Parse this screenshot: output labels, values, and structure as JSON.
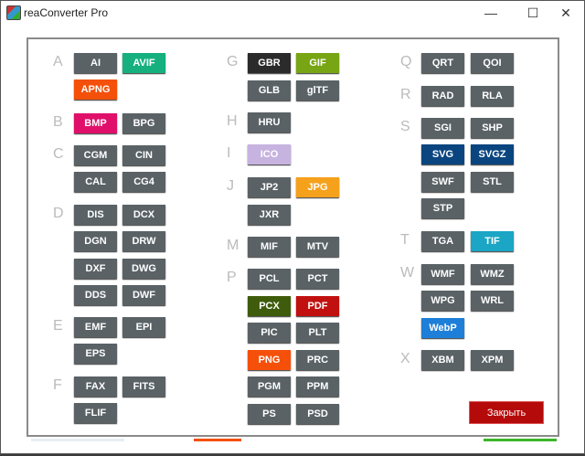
{
  "window": {
    "title": "reaConverter Pro",
    "minimize": "—",
    "maximize": "☐",
    "close": "✕"
  },
  "colors": {
    "default": "#5a6266",
    "close": "#b50a0a"
  },
  "groups": [
    {
      "letter": "A",
      "col": 0,
      "rows": [
        [
          {
            "l": "AI"
          },
          {
            "l": "AVIF",
            "c": "#16b07e"
          }
        ],
        [
          {
            "l": "APNG",
            "c": "#f4500a"
          }
        ]
      ]
    },
    {
      "letter": "B",
      "col": 0,
      "rows": [
        [
          {
            "l": "BMP",
            "c": "#e0106a"
          },
          {
            "l": "BPG"
          }
        ]
      ]
    },
    {
      "letter": "C",
      "col": 0,
      "rows": [
        [
          {
            "l": "CGM"
          },
          {
            "l": "CIN"
          }
        ],
        [
          {
            "l": "CAL"
          },
          {
            "l": "CG4"
          }
        ]
      ]
    },
    {
      "letter": "D",
      "col": 0,
      "rows": [
        [
          {
            "l": "DIS"
          },
          {
            "l": "DCX"
          }
        ],
        [
          {
            "l": "DGN"
          },
          {
            "l": "DRW"
          }
        ],
        [
          {
            "l": "DXF"
          },
          {
            "l": "DWG"
          }
        ],
        [
          {
            "l": "DDS"
          },
          {
            "l": "DWF"
          }
        ]
      ]
    },
    {
      "letter": "E",
      "col": 0,
      "rows": [
        [
          {
            "l": "EMF"
          },
          {
            "l": "EPI"
          }
        ],
        [
          {
            "l": "EPS"
          }
        ]
      ]
    },
    {
      "letter": "F",
      "col": 0,
      "rows": [
        [
          {
            "l": "FAX"
          },
          {
            "l": "FITS"
          }
        ],
        [
          {
            "l": "FLIF"
          }
        ]
      ]
    },
    {
      "letter": "G",
      "col": 1,
      "rows": [
        [
          {
            "l": "GBR",
            "c": "#2b2b2b"
          },
          {
            "l": "GIF",
            "c": "#78a514"
          }
        ],
        [
          {
            "l": "GLB"
          },
          {
            "l": "glTF"
          }
        ]
      ]
    },
    {
      "letter": "H",
      "col": 1,
      "rows": [
        [
          {
            "l": "HRU"
          }
        ]
      ]
    },
    {
      "letter": "I",
      "col": 1,
      "rows": [
        [
          {
            "l": "ICO",
            "c": "#c7b3e0"
          }
        ]
      ]
    },
    {
      "letter": "J",
      "col": 1,
      "rows": [
        [
          {
            "l": "JP2"
          },
          {
            "l": "JPG",
            "c": "#f5a11c"
          }
        ],
        [
          {
            "l": "JXR"
          }
        ]
      ]
    },
    {
      "letter": "M",
      "col": 1,
      "rows": [
        [
          {
            "l": "MIF"
          },
          {
            "l": "MTV"
          }
        ]
      ]
    },
    {
      "letter": "P",
      "col": 1,
      "rows": [
        [
          {
            "l": "PCL"
          },
          {
            "l": "PCT"
          }
        ],
        [
          {
            "l": "PCX",
            "c": "#3f5c0c"
          },
          {
            "l": "PDF",
            "c": "#c0100f"
          }
        ],
        [
          {
            "l": "PIC"
          },
          {
            "l": "PLT"
          }
        ],
        [
          {
            "l": "PNG",
            "c": "#f4500a"
          },
          {
            "l": "PRC"
          }
        ],
        [
          {
            "l": "PGM"
          },
          {
            "l": "PPM"
          }
        ],
        [
          {
            "l": "PS"
          },
          {
            "l": "PSD"
          }
        ]
      ]
    },
    {
      "letter": "Q",
      "col": 2,
      "rows": [
        [
          {
            "l": "QRT"
          },
          {
            "l": "QOI"
          }
        ]
      ]
    },
    {
      "letter": "R",
      "col": 2,
      "rows": [
        [
          {
            "l": "RAD"
          },
          {
            "l": "RLA"
          }
        ]
      ]
    },
    {
      "letter": "S",
      "col": 2,
      "rows": [
        [
          {
            "l": "SGI"
          },
          {
            "l": "SHP"
          }
        ],
        [
          {
            "l": "SVG",
            "c": "#0a4580"
          },
          {
            "l": "SVGZ",
            "c": "#0a4580"
          }
        ],
        [
          {
            "l": "SWF"
          },
          {
            "l": "STL"
          }
        ],
        [
          {
            "l": "STP"
          }
        ]
      ]
    },
    {
      "letter": "T",
      "col": 2,
      "rows": [
        [
          {
            "l": "TGA"
          },
          {
            "l": "TIF",
            "c": "#1aa6c4"
          }
        ]
      ]
    },
    {
      "letter": "W",
      "col": 2,
      "rows": [
        [
          {
            "l": "WMF"
          },
          {
            "l": "WMZ"
          }
        ],
        [
          {
            "l": "WPG"
          },
          {
            "l": "WRL"
          }
        ],
        [
          {
            "l": "WebP",
            "c": "#1e7fd9"
          }
        ]
      ]
    },
    {
      "letter": "X",
      "col": 2,
      "rows": [
        [
          {
            "l": "XBM"
          },
          {
            "l": "XPM"
          }
        ]
      ]
    }
  ],
  "close_label": "Закрыть"
}
